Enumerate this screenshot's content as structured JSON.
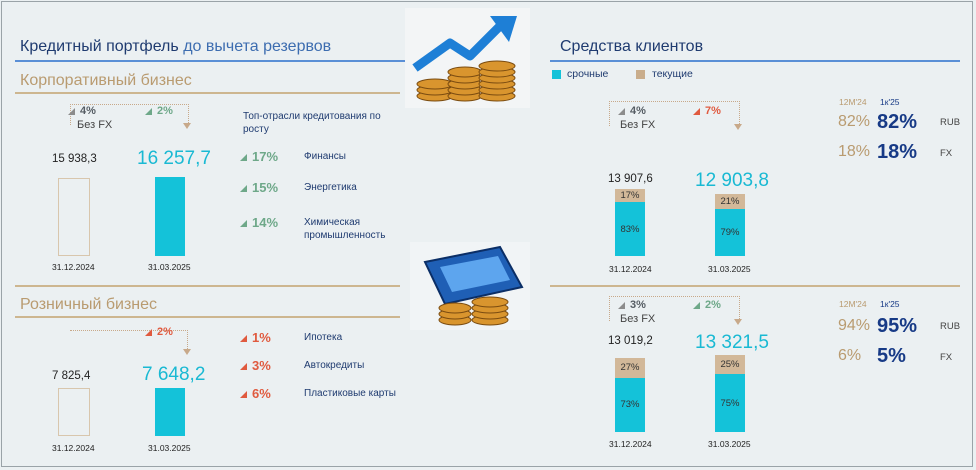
{
  "left": {
    "title": "Кредитный портфель",
    "title_sub": "до вычета резервов",
    "corporate": {
      "heading": "Корпоративный бизнес",
      "delta_fx": "4%",
      "delta_fx_label": "Без FX",
      "delta_total": "2%",
      "value_old": "15 938,3",
      "value_new": "16 257,7",
      "date_old": "31.12.2024",
      "date_new": "31.03.2025",
      "industries_title": "Топ-отрасли кредитования по росту",
      "industries": [
        {
          "pct": "17%",
          "label": "Финансы"
        },
        {
          "pct": "15%",
          "label": "Энергетика"
        },
        {
          "pct": "14%",
          "label": "Химическая промышленность"
        }
      ]
    },
    "retail": {
      "heading": "Розничный бизнес",
      "delta_total": "2%",
      "value_old": "7 825,4",
      "value_new": "7 648,2",
      "date_old": "31.12.2024",
      "date_new": "31.03.2025",
      "products": [
        {
          "pct": "1%",
          "label": "Ипотека"
        },
        {
          "pct": "3%",
          "label": "Автокредиты"
        },
        {
          "pct": "6%",
          "label": "Пластиковые карты"
        }
      ]
    }
  },
  "right": {
    "title": "Средства клиентов",
    "legend": [
      {
        "label": "срочные",
        "color": "#14c2d9"
      },
      {
        "label": "текущие",
        "color": "#c9ad8c"
      }
    ],
    "corporate": {
      "delta_fx": "4%",
      "delta_fx_label": "Без FX",
      "delta_total": "7%",
      "value_old": "13 907,6",
      "value_new": "12 903,8",
      "date_old": "31.12.2024",
      "date_new": "31.03.2025",
      "old_current": "17%",
      "old_term": "83%",
      "new_current": "21%",
      "new_term": "79%",
      "share_hdr_old": "12M'24",
      "share_hdr_new": "1к'25",
      "rub_old": "82%",
      "rub_new": "82%",
      "rub_label": "RUB",
      "fx_old": "18%",
      "fx_new": "18%",
      "fx_label": "FX"
    },
    "retail": {
      "delta_fx": "3%",
      "delta_fx_label": "Без FX",
      "delta_total": "2%",
      "value_old": "13 019,2",
      "value_new": "13 321,5",
      "date_old": "31.12.2024",
      "date_new": "31.03.2025",
      "old_current": "27%",
      "old_term": "73%",
      "new_current": "25%",
      "new_term": "75%",
      "share_hdr_old": "12M'24",
      "share_hdr_new": "1к'25",
      "rub_old": "94%",
      "rub_new": "95%",
      "rub_label": "RUB",
      "fx_old": "6%",
      "fx_new": "5%",
      "fx_label": "FX"
    }
  },
  "colors": {
    "cyan": "#14c2d9",
    "tan": "#c9ad8c",
    "navy": "#173a86",
    "green": "#6ea889",
    "red": "#e05a3f"
  }
}
